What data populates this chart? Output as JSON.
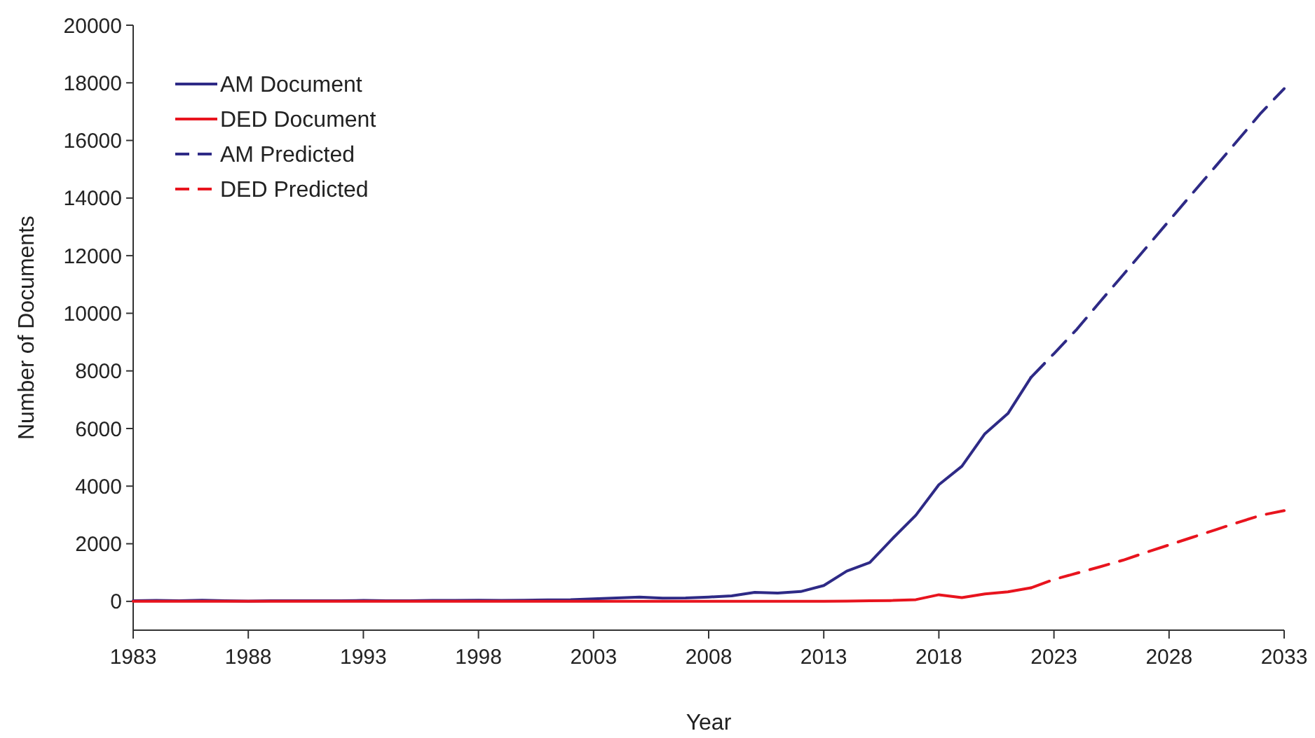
{
  "chart_data": {
    "type": "line",
    "xlabel": "Year",
    "ylabel": "Number of Documents",
    "xlim": [
      1983,
      2033
    ],
    "xticks": [
      1983,
      1988,
      1993,
      1998,
      2003,
      2008,
      2013,
      2018,
      2023,
      2028,
      2033
    ],
    "ylim": [
      -1000,
      20000
    ],
    "yticks": [
      0,
      2000,
      4000,
      6000,
      8000,
      10000,
      12000,
      14000,
      16000,
      18000,
      20000
    ],
    "grid": false,
    "legend": "top left",
    "marker": "none",
    "series": [
      {
        "name": "AM Document",
        "color": "#2e2a86",
        "line_style": "solid",
        "x": [
          1983,
          1984,
          1985,
          1986,
          1987,
          1988,
          1989,
          1990,
          1991,
          1992,
          1993,
          1994,
          1995,
          1996,
          1997,
          1998,
          1999,
          2000,
          2001,
          2002,
          2003,
          2004,
          2005,
          2006,
          2007,
          2008,
          2009,
          2010,
          2011,
          2012,
          2013,
          2014,
          2015,
          2016,
          2017,
          2018,
          2019,
          2020,
          2021,
          2022
        ],
        "values": [
          20,
          30,
          20,
          40,
          20,
          10,
          20,
          20,
          20,
          20,
          30,
          20,
          20,
          30,
          30,
          40,
          30,
          40,
          50,
          60,
          90,
          120,
          150,
          110,
          120,
          150,
          190,
          310,
          290,
          340,
          550,
          1050,
          1350,
          2190,
          2990,
          4050,
          4690,
          5820,
          6520,
          7770
        ]
      },
      {
        "name": "DED Document",
        "color": "#e8141e",
        "line_style": "solid",
        "x": [
          1983,
          1988,
          1993,
          1998,
          2003,
          2008,
          2013,
          2014,
          2015,
          2016,
          2017,
          2018,
          2019,
          2020,
          2021,
          2022
        ],
        "values": [
          0,
          0,
          0,
          0,
          0,
          0,
          0,
          10,
          20,
          30,
          60,
          230,
          130,
          260,
          330,
          470
        ]
      },
      {
        "name": "AM Predicted",
        "color": "#2e2a86",
        "line_style": "dashed",
        "x": [
          2022,
          2023,
          2024,
          2025,
          2026,
          2027,
          2028,
          2029,
          2030,
          2031,
          2032,
          2033
        ],
        "values": [
          7770,
          8600,
          9450,
          10400,
          11330,
          12270,
          13210,
          14150,
          15080,
          16020,
          16960,
          17800
        ]
      },
      {
        "name": "DED Predicted",
        "color": "#e8141e",
        "line_style": "dashed",
        "x": [
          2022,
          2023,
          2024,
          2025,
          2026,
          2027,
          2028,
          2029,
          2030,
          2031,
          2032,
          2033
        ],
        "values": [
          470,
          760,
          980,
          1200,
          1430,
          1700,
          1960,
          2220,
          2480,
          2740,
          2990,
          3150
        ]
      }
    ]
  }
}
